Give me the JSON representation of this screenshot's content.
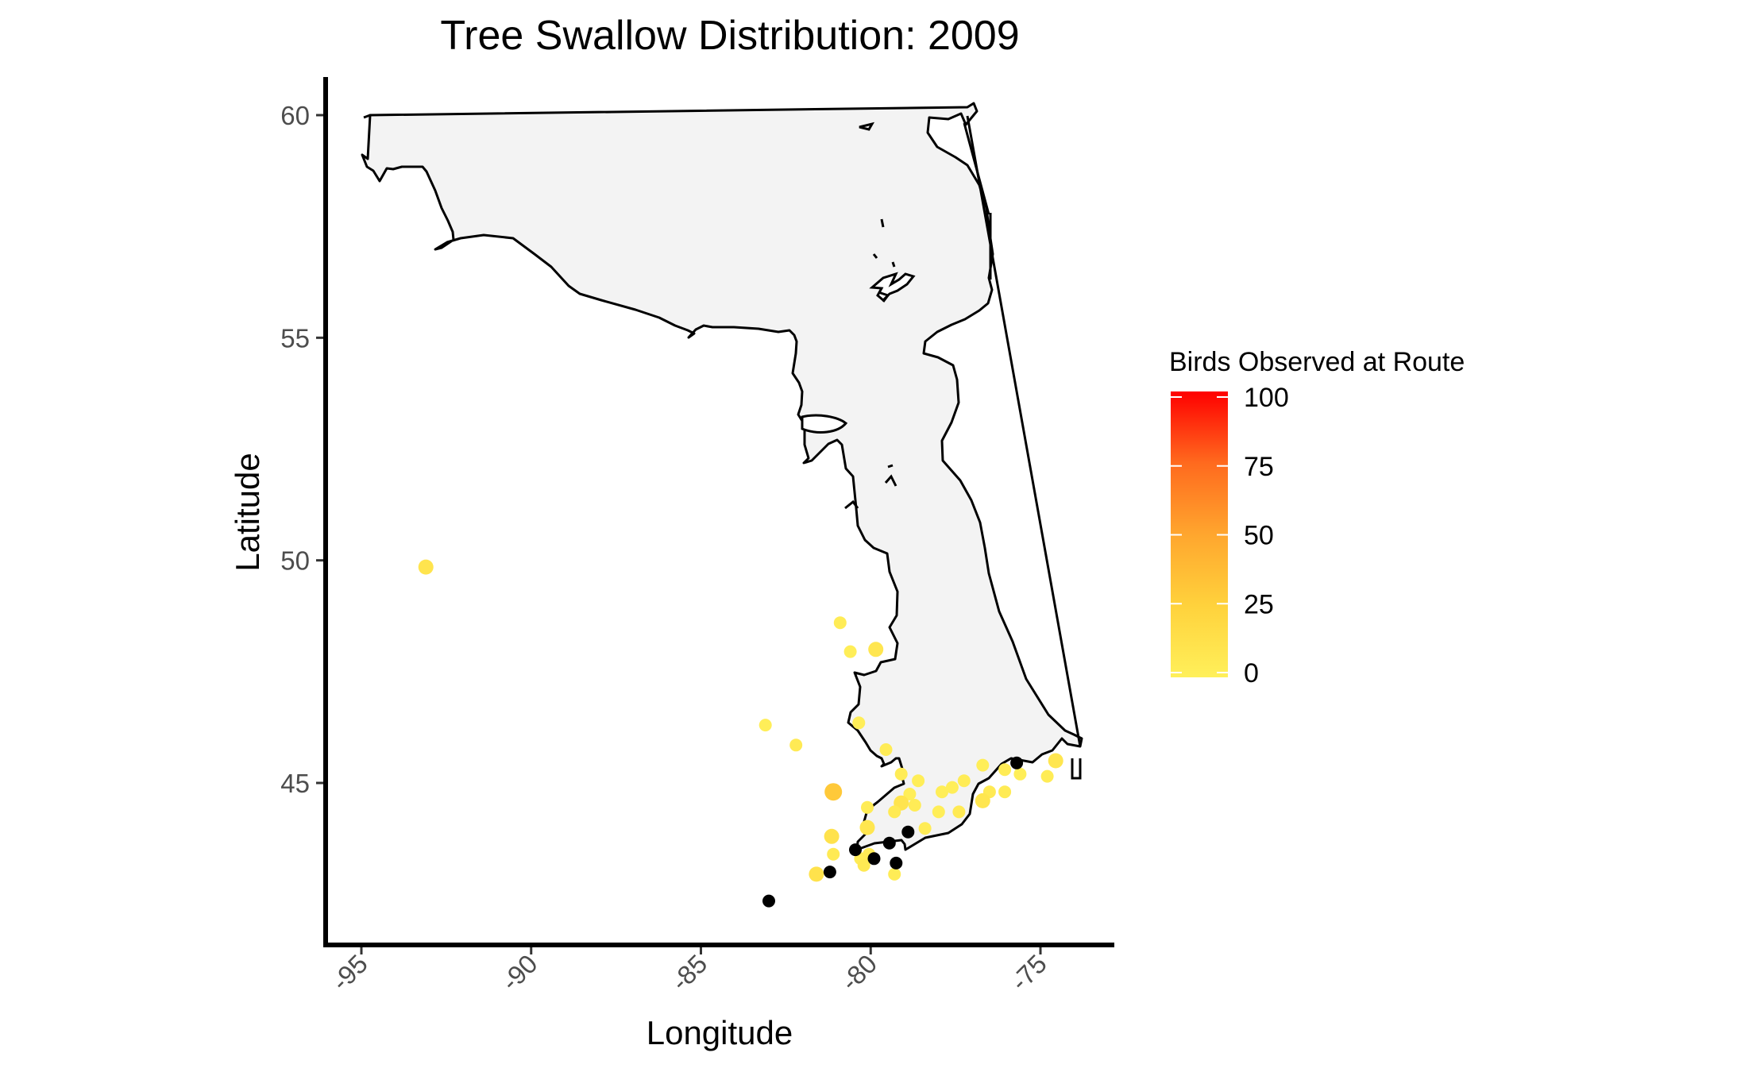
{
  "chart_data": {
    "type": "scatter",
    "title": "Tree Swallow Distribution: 2009",
    "xlabel": "Longitude",
    "ylabel": "Latitude",
    "xlim": [
      -96,
      -73
    ],
    "ylim": [
      41.2,
      60.9
    ],
    "x_ticks": [
      -95,
      -90,
      -85,
      -80,
      -75
    ],
    "y_ticks": [
      45,
      50,
      55,
      60
    ],
    "x_tick_labels": [
      "-95",
      "-90",
      "-85",
      "-80",
      "-75"
    ],
    "y_tick_labels": [
      "45",
      "50",
      "55",
      "60"
    ],
    "grid": false,
    "legend": {
      "title": "Birds Observed at Route",
      "position": "right",
      "scale": "yellow-to-red gradient",
      "min": 0,
      "max": 100,
      "ticks": [
        100,
        75,
        50,
        25,
        0
      ],
      "tick_labels": [
        "100",
        "75",
        "50",
        "25",
        "0"
      ],
      "color_low": "#FFF05A",
      "color_mid_low": "#FFD23C",
      "color_mid": "#FFA62E",
      "color_mid_high": "#FF6A1E",
      "color_high": "#FF0000"
    },
    "missing_value_color": "#000000",
    "map_fill": "#f3f3f3",
    "map_stroke": "#000000",
    "points": [
      {
        "lon": -93.1,
        "lat": 49.85,
        "birds": 10
      },
      {
        "lon": -80.9,
        "lat": 48.6,
        "birds": 3
      },
      {
        "lon": -80.6,
        "lat": 47.95,
        "birds": 2
      },
      {
        "lon": -79.85,
        "lat": 48.0,
        "birds": 8
      },
      {
        "lon": -83.1,
        "lat": 46.3,
        "birds": 2
      },
      {
        "lon": -82.2,
        "lat": 45.85,
        "birds": 5
      },
      {
        "lon": -80.35,
        "lat": 46.35,
        "birds": 2
      },
      {
        "lon": -79.55,
        "lat": 45.75,
        "birds": 3
      },
      {
        "lon": -81.1,
        "lat": 44.8,
        "birds": 30
      },
      {
        "lon": -79.1,
        "lat": 45.2,
        "birds": 3
      },
      {
        "lon": -78.6,
        "lat": 45.05,
        "birds": 2
      },
      {
        "lon": -77.9,
        "lat": 44.8,
        "birds": 2
      },
      {
        "lon": -77.6,
        "lat": 44.9,
        "birds": 2
      },
      {
        "lon": -77.25,
        "lat": 45.05,
        "birds": 3
      },
      {
        "lon": -76.7,
        "lat": 45.4,
        "birds": 2
      },
      {
        "lon": -76.05,
        "lat": 45.3,
        "birds": 3
      },
      {
        "lon": -75.6,
        "lat": 45.2,
        "birds": 2
      },
      {
        "lon": -74.55,
        "lat": 45.5,
        "birds": 8
      },
      {
        "lon": -74.8,
        "lat": 45.15,
        "birds": 3
      },
      {
        "lon": -78.85,
        "lat": 44.75,
        "birds": 2
      },
      {
        "lon": -79.1,
        "lat": 44.55,
        "birds": 10
      },
      {
        "lon": -79.3,
        "lat": 44.35,
        "birds": 5
      },
      {
        "lon": -78.7,
        "lat": 44.5,
        "birds": 3
      },
      {
        "lon": -78.0,
        "lat": 44.35,
        "birds": 2
      },
      {
        "lon": -77.4,
        "lat": 44.35,
        "birds": 5
      },
      {
        "lon": -76.5,
        "lat": 44.8,
        "birds": 5
      },
      {
        "lon": -76.7,
        "lat": 44.6,
        "birds": 8
      },
      {
        "lon": -76.05,
        "lat": 44.8,
        "birds": 4
      },
      {
        "lon": -80.1,
        "lat": 44.45,
        "birds": 3
      },
      {
        "lon": -80.1,
        "lat": 44.0,
        "birds": 8
      },
      {
        "lon": -78.4,
        "lat": 43.98,
        "birds": 3
      },
      {
        "lon": -81.15,
        "lat": 43.8,
        "birds": 12
      },
      {
        "lon": -81.1,
        "lat": 43.4,
        "birds": 5
      },
      {
        "lon": -80.3,
        "lat": 43.3,
        "birds": 3
      },
      {
        "lon": -80.05,
        "lat": 43.4,
        "birds": 4
      },
      {
        "lon": -80.2,
        "lat": 43.15,
        "birds": 6
      },
      {
        "lon": -81.6,
        "lat": 42.95,
        "birds": 12
      },
      {
        "lon": -79.3,
        "lat": 42.95,
        "birds": 3
      },
      {
        "lon": -83.0,
        "lat": 42.35,
        "birds": null
      },
      {
        "lon": -81.2,
        "lat": 43.0,
        "birds": null
      },
      {
        "lon": -80.45,
        "lat": 43.5,
        "birds": null
      },
      {
        "lon": -79.9,
        "lat": 43.3,
        "birds": null
      },
      {
        "lon": -79.45,
        "lat": 43.65,
        "birds": null
      },
      {
        "lon": -79.25,
        "lat": 43.2,
        "birds": null
      },
      {
        "lon": -78.9,
        "lat": 43.9,
        "birds": null
      },
      {
        "lon": -75.7,
        "lat": 45.45,
        "birds": null
      }
    ]
  }
}
